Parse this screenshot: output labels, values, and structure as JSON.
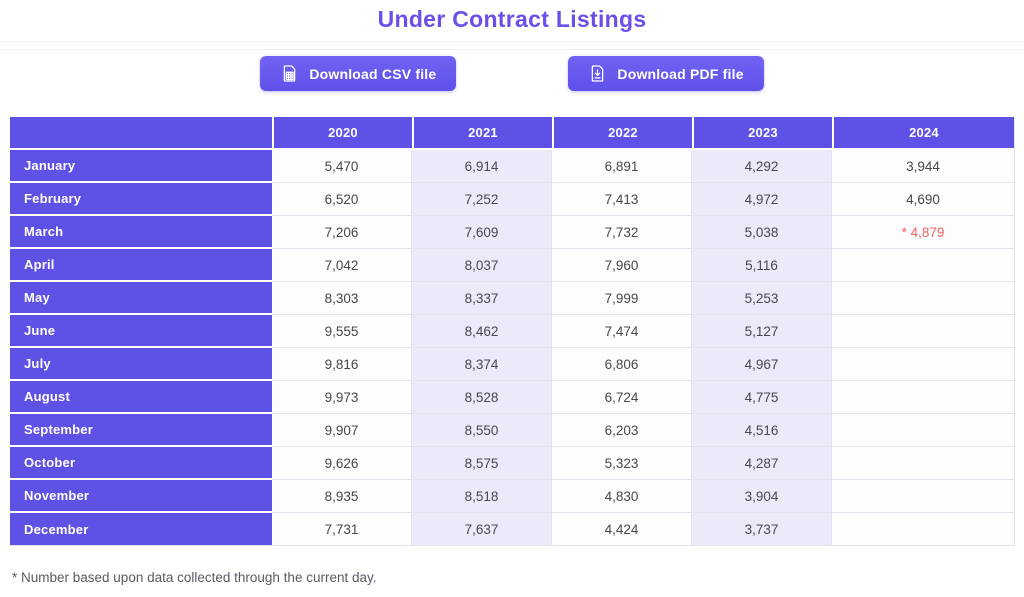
{
  "title": "Under Contract Listings",
  "toolbar": {
    "csv_label": "Download CSV file",
    "pdf_label": "Download PDF file"
  },
  "footnote": "* Number based upon data collected through the current day.",
  "colors": {
    "title": "#6C4FE8",
    "button": "#6456EC",
    "table_purple": "#5E51E6",
    "alt_column": "#ECEAF9",
    "red_value": "#F16262",
    "cell_text": "#47474F",
    "border": "#E3E3EB"
  },
  "chart_data": {
    "type": "table",
    "title": "Under Contract Listings",
    "columns": [
      "2020",
      "2021",
      "2022",
      "2023",
      "2024"
    ],
    "rows": [
      {
        "label": "January",
        "values": [
          "5,470",
          "6,914",
          "6,891",
          "4,292",
          "3,944"
        ]
      },
      {
        "label": "February",
        "values": [
          "6,520",
          "7,252",
          "7,413",
          "4,972",
          "4,690"
        ]
      },
      {
        "label": "March",
        "values": [
          "7,206",
          "7,609",
          "7,732",
          "5,038",
          "* 4,879"
        ]
      },
      {
        "label": "April",
        "values": [
          "7,042",
          "8,037",
          "7,960",
          "5,116",
          ""
        ]
      },
      {
        "label": "May",
        "values": [
          "8,303",
          "8,337",
          "7,999",
          "5,253",
          ""
        ]
      },
      {
        "label": "June",
        "values": [
          "9,555",
          "8,462",
          "7,474",
          "5,127",
          ""
        ]
      },
      {
        "label": "July",
        "values": [
          "9,816",
          "8,374",
          "6,806",
          "4,967",
          ""
        ]
      },
      {
        "label": "August",
        "values": [
          "9,973",
          "8,528",
          "6,724",
          "4,775",
          ""
        ]
      },
      {
        "label": "September",
        "values": [
          "9,907",
          "8,550",
          "6,203",
          "4,516",
          ""
        ]
      },
      {
        "label": "October",
        "values": [
          "9,626",
          "8,575",
          "5,323",
          "4,287",
          ""
        ]
      },
      {
        "label": "November",
        "values": [
          "8,935",
          "8,518",
          "4,830",
          "3,904",
          ""
        ]
      },
      {
        "label": "December",
        "values": [
          "7,731",
          "7,637",
          "4,424",
          "3,737",
          ""
        ]
      }
    ]
  }
}
